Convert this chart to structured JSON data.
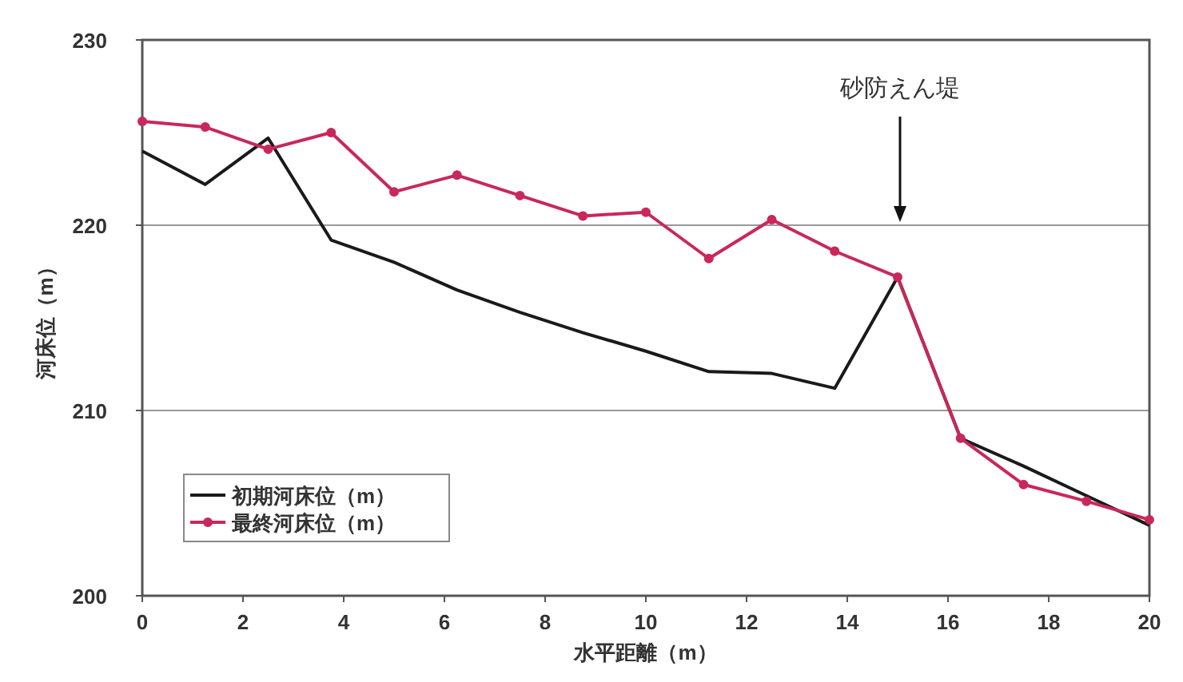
{
  "chart_data": {
    "type": "line",
    "xlabel": "水平距離（m）",
    "ylabel": "河床位（m）",
    "xlim": [
      0,
      20
    ],
    "xticks": [
      0,
      2,
      4,
      6,
      8,
      10,
      12,
      14,
      16,
      18,
      20
    ],
    "ylim": [
      200,
      230
    ],
    "yticks": [
      200,
      210,
      220,
      230
    ],
    "grid": "y",
    "legend": "bottom left",
    "series": [
      {
        "name": "初期河床位（m）",
        "color": "#1a1a1a",
        "marker": "none",
        "x": [
          0,
          1.25,
          2.5,
          3.75,
          5,
          6.25,
          7.5,
          8.75,
          10,
          11.25,
          12.5,
          13.75,
          15,
          16.25,
          17.5,
          18.75,
          20
        ],
        "values": [
          224.0,
          222.2,
          224.7,
          219.2,
          218.0,
          216.5,
          215.3,
          214.2,
          213.2,
          212.1,
          212.0,
          211.2,
          217.2,
          208.5,
          207.0,
          205.4,
          203.8
        ]
      },
      {
        "name": "最終河床位（m）",
        "color": "#c8285a",
        "marker": "circle",
        "x": [
          0,
          1.25,
          2.5,
          3.75,
          5,
          6.25,
          7.5,
          8.75,
          10,
          11.25,
          12.5,
          13.75,
          15,
          16.25,
          17.5,
          18.75,
          20
        ],
        "values": [
          225.6,
          225.3,
          224.1,
          225.0,
          221.8,
          222.7,
          221.6,
          220.5,
          220.7,
          218.2,
          220.3,
          218.6,
          217.2,
          208.5,
          206.0,
          205.1,
          204.1
        ]
      }
    ],
    "annotations": [
      "砂防えん堤"
    ]
  }
}
